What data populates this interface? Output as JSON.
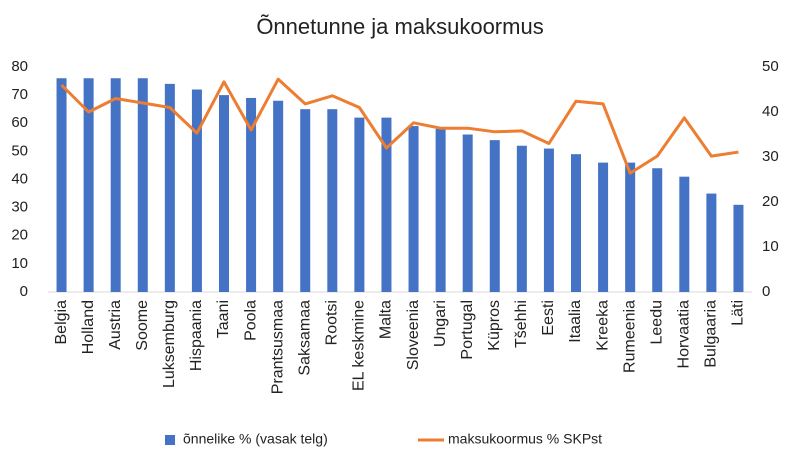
{
  "chart_data": {
    "type": "bar-line",
    "title": "Õnnetunne ja maksukoormus",
    "categories": [
      "Belgia",
      "Holland",
      "Austria",
      "Soome",
      "Luksemburg",
      "Hispaania",
      "Taani",
      "Poola",
      "Prantsusmaa",
      "Saksamaa",
      "Rootsi",
      "EL keskmine",
      "Malta",
      "Sloveenia",
      "Ungari",
      "Portugal",
      "Küpros",
      "Tšehhi",
      "Eesti",
      "Itaalia",
      "Kreeka",
      "Rumeenia",
      "Leedu",
      "Horvaatia",
      "Bulgaaria",
      "Läti"
    ],
    "series": [
      {
        "name": "õnnelike % (vasak telg)",
        "type": "bar",
        "color": "#4472c4",
        "axis": "y",
        "values": [
          76,
          76,
          76,
          76,
          74,
          72,
          70,
          69,
          68,
          65,
          65,
          62,
          62,
          59,
          58,
          56,
          54,
          52,
          51,
          49,
          46,
          46,
          44,
          41,
          35,
          31
        ]
      },
      {
        "name": "maksukoormus % SKPst",
        "type": "line",
        "color": "#ed7d31",
        "axis": "y2",
        "values": [
          46,
          40,
          43,
          42,
          41,
          35.3,
          46.7,
          36,
          47.3,
          41.8,
          43.6,
          41,
          32,
          37.6,
          36.4,
          36.4,
          35.6,
          35.8,
          33,
          42.4,
          41.8,
          26.4,
          30.2,
          38.7,
          30.2,
          31.1
        ]
      }
    ],
    "ylim": [
      0,
      80
    ],
    "yticks": [
      0,
      10,
      20,
      30,
      40,
      50,
      60,
      70,
      80
    ],
    "y2lim": [
      0,
      50
    ],
    "y2ticks": [
      0,
      10,
      20,
      30,
      40,
      50
    ],
    "grid": false,
    "legend": "bottom"
  }
}
